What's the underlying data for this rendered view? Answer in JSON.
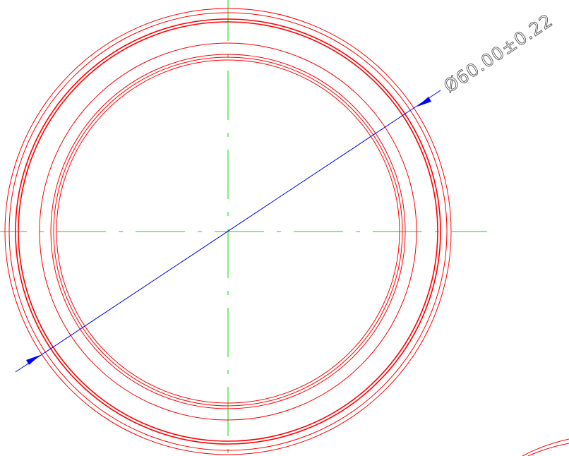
{
  "dimension": {
    "label": "Ø60.00±0.22"
  }
}
